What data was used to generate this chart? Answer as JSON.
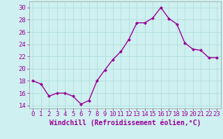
{
  "x": [
    0,
    1,
    2,
    3,
    4,
    5,
    6,
    7,
    8,
    9,
    10,
    11,
    12,
    13,
    14,
    15,
    16,
    17,
    18,
    19,
    20,
    21,
    22,
    23
  ],
  "y": [
    18,
    17.5,
    15.5,
    16,
    16,
    15.5,
    14.2,
    14.8,
    18,
    19.8,
    21.5,
    22.8,
    24.8,
    27.5,
    27.5,
    28.3,
    30,
    28.2,
    27.3,
    24.2,
    23.2,
    23,
    21.8,
    21.8
  ],
  "line_color": "#990099",
  "marker": "D",
  "marker_size": 2,
  "linewidth": 1.0,
  "xlabel": "Windchill (Refroidissement éolien,°C)",
  "xlabel_fontsize": 7,
  "bg_color": "#cff0f0",
  "grid_color": "#b0dede",
  "ylim": [
    13.5,
    31
  ],
  "xlim": [
    -0.5,
    23.5
  ],
  "yticks": [
    14,
    16,
    18,
    20,
    22,
    24,
    26,
    28,
    30
  ],
  "xticks": [
    0,
    1,
    2,
    3,
    4,
    5,
    6,
    7,
    8,
    9,
    10,
    11,
    12,
    13,
    14,
    15,
    16,
    17,
    18,
    19,
    20,
    21,
    22,
    23
  ],
  "tick_fontsize": 6.5,
  "tick_color": "#990099",
  "spine_color": "#999999"
}
